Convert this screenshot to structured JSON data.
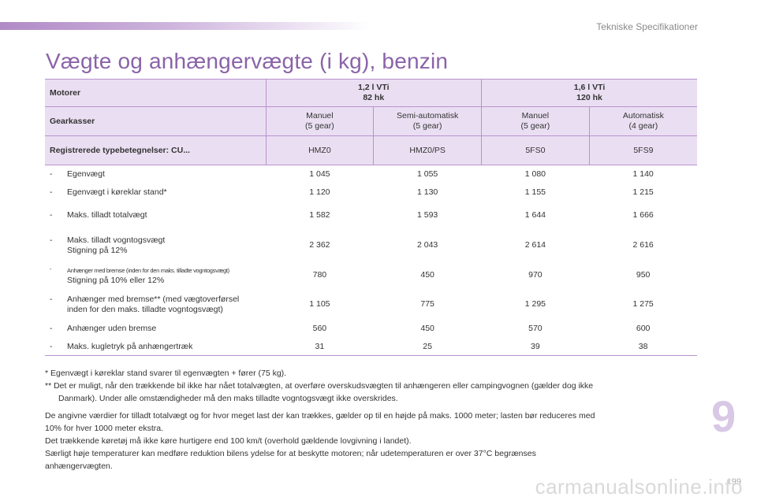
{
  "header": {
    "section_title": "Tekniske Specifikationer",
    "page_title": "Vægte og anhængervægte (i kg), benzin"
  },
  "table": {
    "motor_label": "Motorer",
    "motor_groups": [
      {
        "line1": "1,2 l VTi",
        "line2": "82 hk"
      },
      {
        "line1": "1,6 l VTi",
        "line2": "120 hk"
      }
    ],
    "gear_label": "Gearkasser",
    "gears": [
      {
        "line1": "Manuel",
        "line2": "(5 gear)"
      },
      {
        "line1": "Semi-automatisk",
        "line2": "(5 gear)"
      },
      {
        "line1": "Manuel",
        "line2": "(5 gear)"
      },
      {
        "line1": "Automatisk",
        "line2": "(4 gear)"
      }
    ],
    "reg_label": "Registrerede typebetegnelser: CU...",
    "reg_codes": [
      "HMZ0",
      "HMZ0/PS",
      "5FS0",
      "5FS9"
    ],
    "rows": [
      {
        "dash": "-",
        "label1": "Egenvægt",
        "label2": "",
        "values": [
          "1 045",
          "1 055",
          "1 080",
          "1 140"
        ]
      },
      {
        "dash": "-",
        "label1": "Egenvægt i køreklar stand*",
        "label2": "",
        "values": [
          "1 120",
          "1 130",
          "1 155",
          "1 215"
        ]
      },
      {
        "dash": "-",
        "label1": "Maks. tilladt totalvægt",
        "label2": "",
        "values": [
          "1 582",
          "1 593",
          "1 644",
          "1 666"
        ]
      },
      {
        "dash": "-",
        "label1": "Maks. tilladt vogntogsvægt",
        "label2": "Stigning på 12%",
        "values": [
          "2 362",
          "2 043",
          "2 614",
          "2 616"
        ]
      },
      {
        "dash": "-",
        "label1": "Anhænger med bremse (inden for den maks. tilladte vogntogsvægt)",
        "label2": "Stigning på 10% eller 12%",
        "values": [
          "780",
          "450",
          "970",
          "950"
        ]
      },
      {
        "dash": "-",
        "label1": "Anhænger med bremse** (med vægtoverførsel",
        "label2": "inden for den maks. tilladte vogntogsvægt)",
        "values": [
          "1 105",
          "775",
          "1 295",
          "1 275"
        ]
      },
      {
        "dash": "-",
        "label1": "Anhænger uden bremse",
        "label2": "",
        "values": [
          "560",
          "450",
          "570",
          "600"
        ]
      },
      {
        "dash": "-",
        "label1": "Maks. kugletryk på anhængertræk",
        "label2": "",
        "values": [
          "31",
          "25",
          "39",
          "38"
        ]
      }
    ]
  },
  "notes": {
    "footnote1": "* Egenvægt i køreklar stand svarer til egenvægten + fører (75 kg).",
    "footnote2_line1": "** Det er muligt, når den trækkende bil ikke har nået totalvægten, at overføre overskudsvægten til anhængeren eller campingvognen (gælder dog ikke",
    "footnote2_line2": "Danmark). Under alle omstændigheder må den maks tilladte vogntogsvægt ikke overskrides.",
    "para1_line1": "De angivne værdier for tilladt totalvægt og for hvor meget last der kan trækkes, gælder op til en højde på maks. 1000 meter; lasten bør reduceres med",
    "para1_line2": "10% for hver 1000 meter ekstra.",
    "para2": "Det trækkende køretøj må ikke køre hurtigere end 100 km/t (overhold gældende lovgivning i landet).",
    "para3_line1": "Særligt høje temperaturer kan medføre reduktion bilens ydelse for at beskytte motoren; når udetemperaturen er over 37°C begrænses",
    "para3_line2": "anhængervægten."
  },
  "chapter_number": "9",
  "page_number": "199",
  "watermark": "carmanualsonline.info",
  "colors": {
    "accent_purple": "#8a63a8",
    "header_fill": "#eadff2",
    "rule": "#b892cf",
    "chapter_tab": "#d8c8e6"
  }
}
